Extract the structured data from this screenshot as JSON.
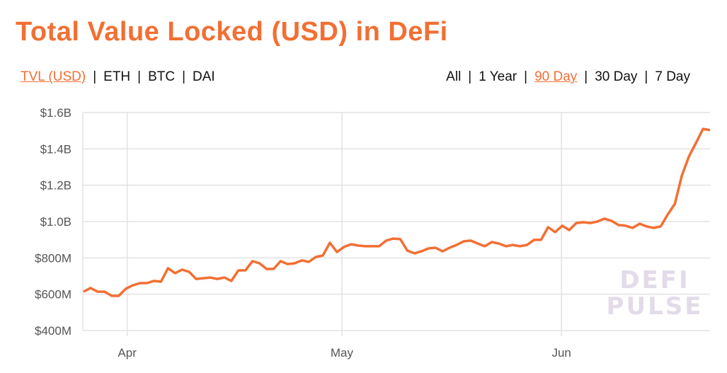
{
  "title": "Total Value Locked (USD) in DeFi",
  "metric_tabs": [
    {
      "label": "TVL (USD)",
      "active": true
    },
    {
      "label": "ETH",
      "active": false
    },
    {
      "label": "BTC",
      "active": false
    },
    {
      "label": "DAI",
      "active": false
    }
  ],
  "range_tabs": [
    {
      "label": "All",
      "active": false
    },
    {
      "label": "1 Year",
      "active": false
    },
    {
      "label": "90 Day",
      "active": true
    },
    {
      "label": "30 Day",
      "active": false
    },
    {
      "label": "7 Day",
      "active": false
    }
  ],
  "separator": "|",
  "watermark": [
    "DEFI",
    "PULSE"
  ],
  "colors": {
    "accent": "#f26f33",
    "grid": "#e2e2e2"
  },
  "chart_data": {
    "type": "line",
    "title": "Total Value Locked (USD) in DeFi",
    "xlabel": "",
    "ylabel": "",
    "ylim": [
      400,
      1600
    ],
    "yticks": [
      400,
      600,
      800,
      1000,
      1200,
      1400,
      1600
    ],
    "ytick_labels": [
      "$400M",
      "$600M",
      "$800M",
      "$1.0B",
      "$1.2B",
      "$1.4B",
      "$1.6B"
    ],
    "xticks": [
      6.2,
      36.7,
      67.9
    ],
    "xtick_labels": [
      "Apr",
      "May",
      "Jun"
    ],
    "grid": true,
    "units": "USD millions",
    "series": [
      {
        "name": "TVL (USD)",
        "values": [
          614,
          634,
          614,
          614,
          591,
          591,
          630,
          649,
          661,
          661,
          673,
          669,
          743,
          716,
          735,
          723,
          684,
          688,
          692,
          684,
          692,
          673,
          731,
          731,
          782,
          770,
          739,
          739,
          782,
          766,
          770,
          786,
          778,
          805,
          813,
          883,
          832,
          860,
          875,
          868,
          864,
          864,
          864,
          895,
          906,
          903,
          840,
          825,
          836,
          852,
          856,
          836,
          856,
          871,
          891,
          895,
          879,
          864,
          887,
          879,
          864,
          871,
          864,
          871,
          899,
          899,
          969,
          942,
          977,
          953,
          992,
          996,
          992,
          1000,
          1016,
          1004,
          981,
          977,
          965,
          988,
          973,
          965,
          973,
          1039,
          1097,
          1253,
          1358,
          1432,
          1510,
          1503
        ]
      }
    ]
  }
}
